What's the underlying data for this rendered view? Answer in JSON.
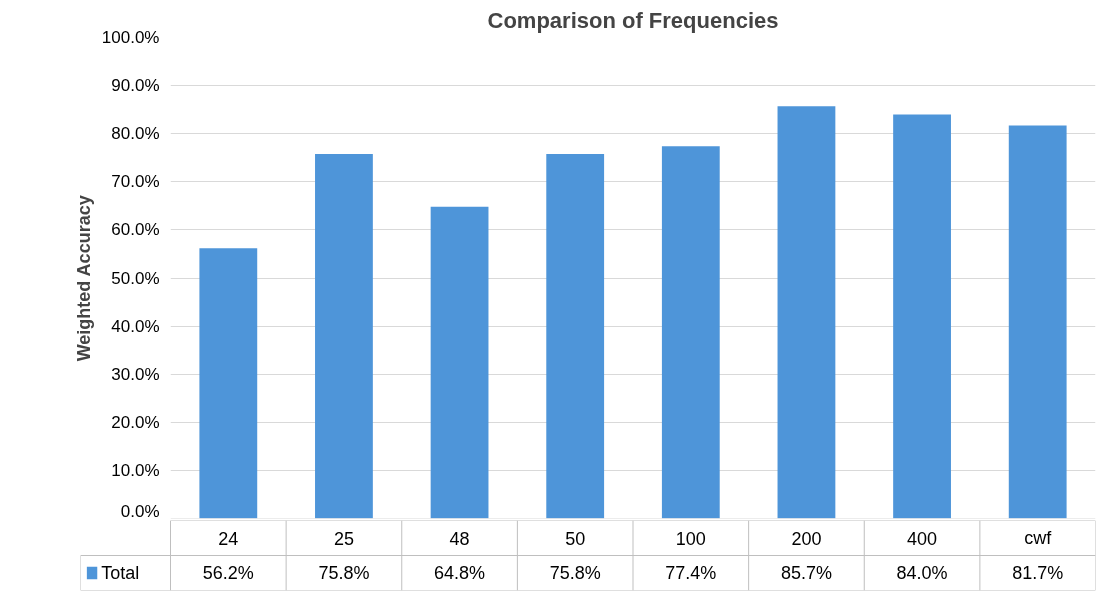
{
  "chart_data": {
    "type": "bar",
    "title": "Comparison of Frequencies",
    "ylabel": "Weighted Accuracy",
    "categories": [
      "24",
      "25",
      "48",
      "50",
      "100",
      "200",
      "400",
      "cwf"
    ],
    "series": [
      {
        "name": "Total",
        "color": "#4e95d9",
        "values": [
          56.2,
          75.8,
          64.8,
          75.8,
          77.4,
          85.7,
          84.0,
          81.7
        ],
        "value_labels": [
          "56.2%",
          "75.8%",
          "64.8%",
          "75.8%",
          "77.4%",
          "85.7%",
          "84.0%",
          "81.7%"
        ]
      }
    ],
    "ylim": [
      0,
      100
    ],
    "yticks": [
      {
        "value": 0,
        "label": "0.0%"
      },
      {
        "value": 10,
        "label": "10.0%"
      },
      {
        "value": 20,
        "label": "20.0%"
      },
      {
        "value": 30,
        "label": "30.0%"
      },
      {
        "value": 40,
        "label": "40.0%"
      },
      {
        "value": 50,
        "label": "50.0%"
      },
      {
        "value": 60,
        "label": "60.0%"
      },
      {
        "value": 70,
        "label": "70.0%"
      },
      {
        "value": 80,
        "label": "80.0%"
      },
      {
        "value": 90,
        "label": "90.0%"
      },
      {
        "value": 100,
        "label": "100.0%"
      }
    ],
    "grid": "y",
    "legend": "bottom"
  }
}
